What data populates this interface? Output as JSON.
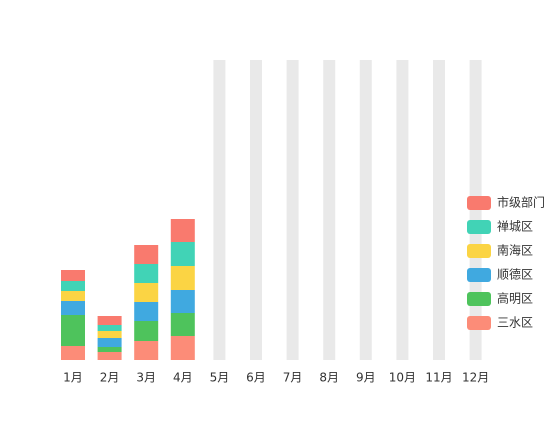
{
  "chart_data": {
    "type": "stacked-bar",
    "categories": [
      "1月",
      "2月",
      "3月",
      "4月",
      "5月",
      "6月",
      "7月",
      "8月",
      "9月",
      "10月",
      "11月",
      "12月"
    ],
    "series": [
      {
        "name": "三水区",
        "color": "#fc8c78",
        "values": [
          14,
          8,
          19,
          24,
          null,
          null,
          null,
          null,
          null,
          null,
          null,
          null
        ]
      },
      {
        "name": "高明区",
        "color": "#4ec35c",
        "values": [
          31,
          5,
          20,
          23,
          null,
          null,
          null,
          null,
          null,
          null,
          null,
          null
        ]
      },
      {
        "name": "顺德区",
        "color": "#40a9e0",
        "values": [
          14,
          9,
          19,
          23,
          null,
          null,
          null,
          null,
          null,
          null,
          null,
          null
        ]
      },
      {
        "name": "南海区",
        "color": "#fbd444",
        "values": [
          10,
          7,
          19,
          24,
          null,
          null,
          null,
          null,
          null,
          null,
          null,
          null
        ]
      },
      {
        "name": "禅城区",
        "color": "#41d3b6",
        "values": [
          10,
          6,
          19,
          24,
          null,
          null,
          null,
          null,
          null,
          null,
          null,
          null
        ]
      },
      {
        "name": "市级部门",
        "color": "#f97a6e",
        "values": [
          11,
          9,
          19,
          23,
          null,
          null,
          null,
          null,
          null,
          null,
          null,
          null
        ]
      }
    ],
    "ylim": [
      0,
      300
    ]
  }
}
